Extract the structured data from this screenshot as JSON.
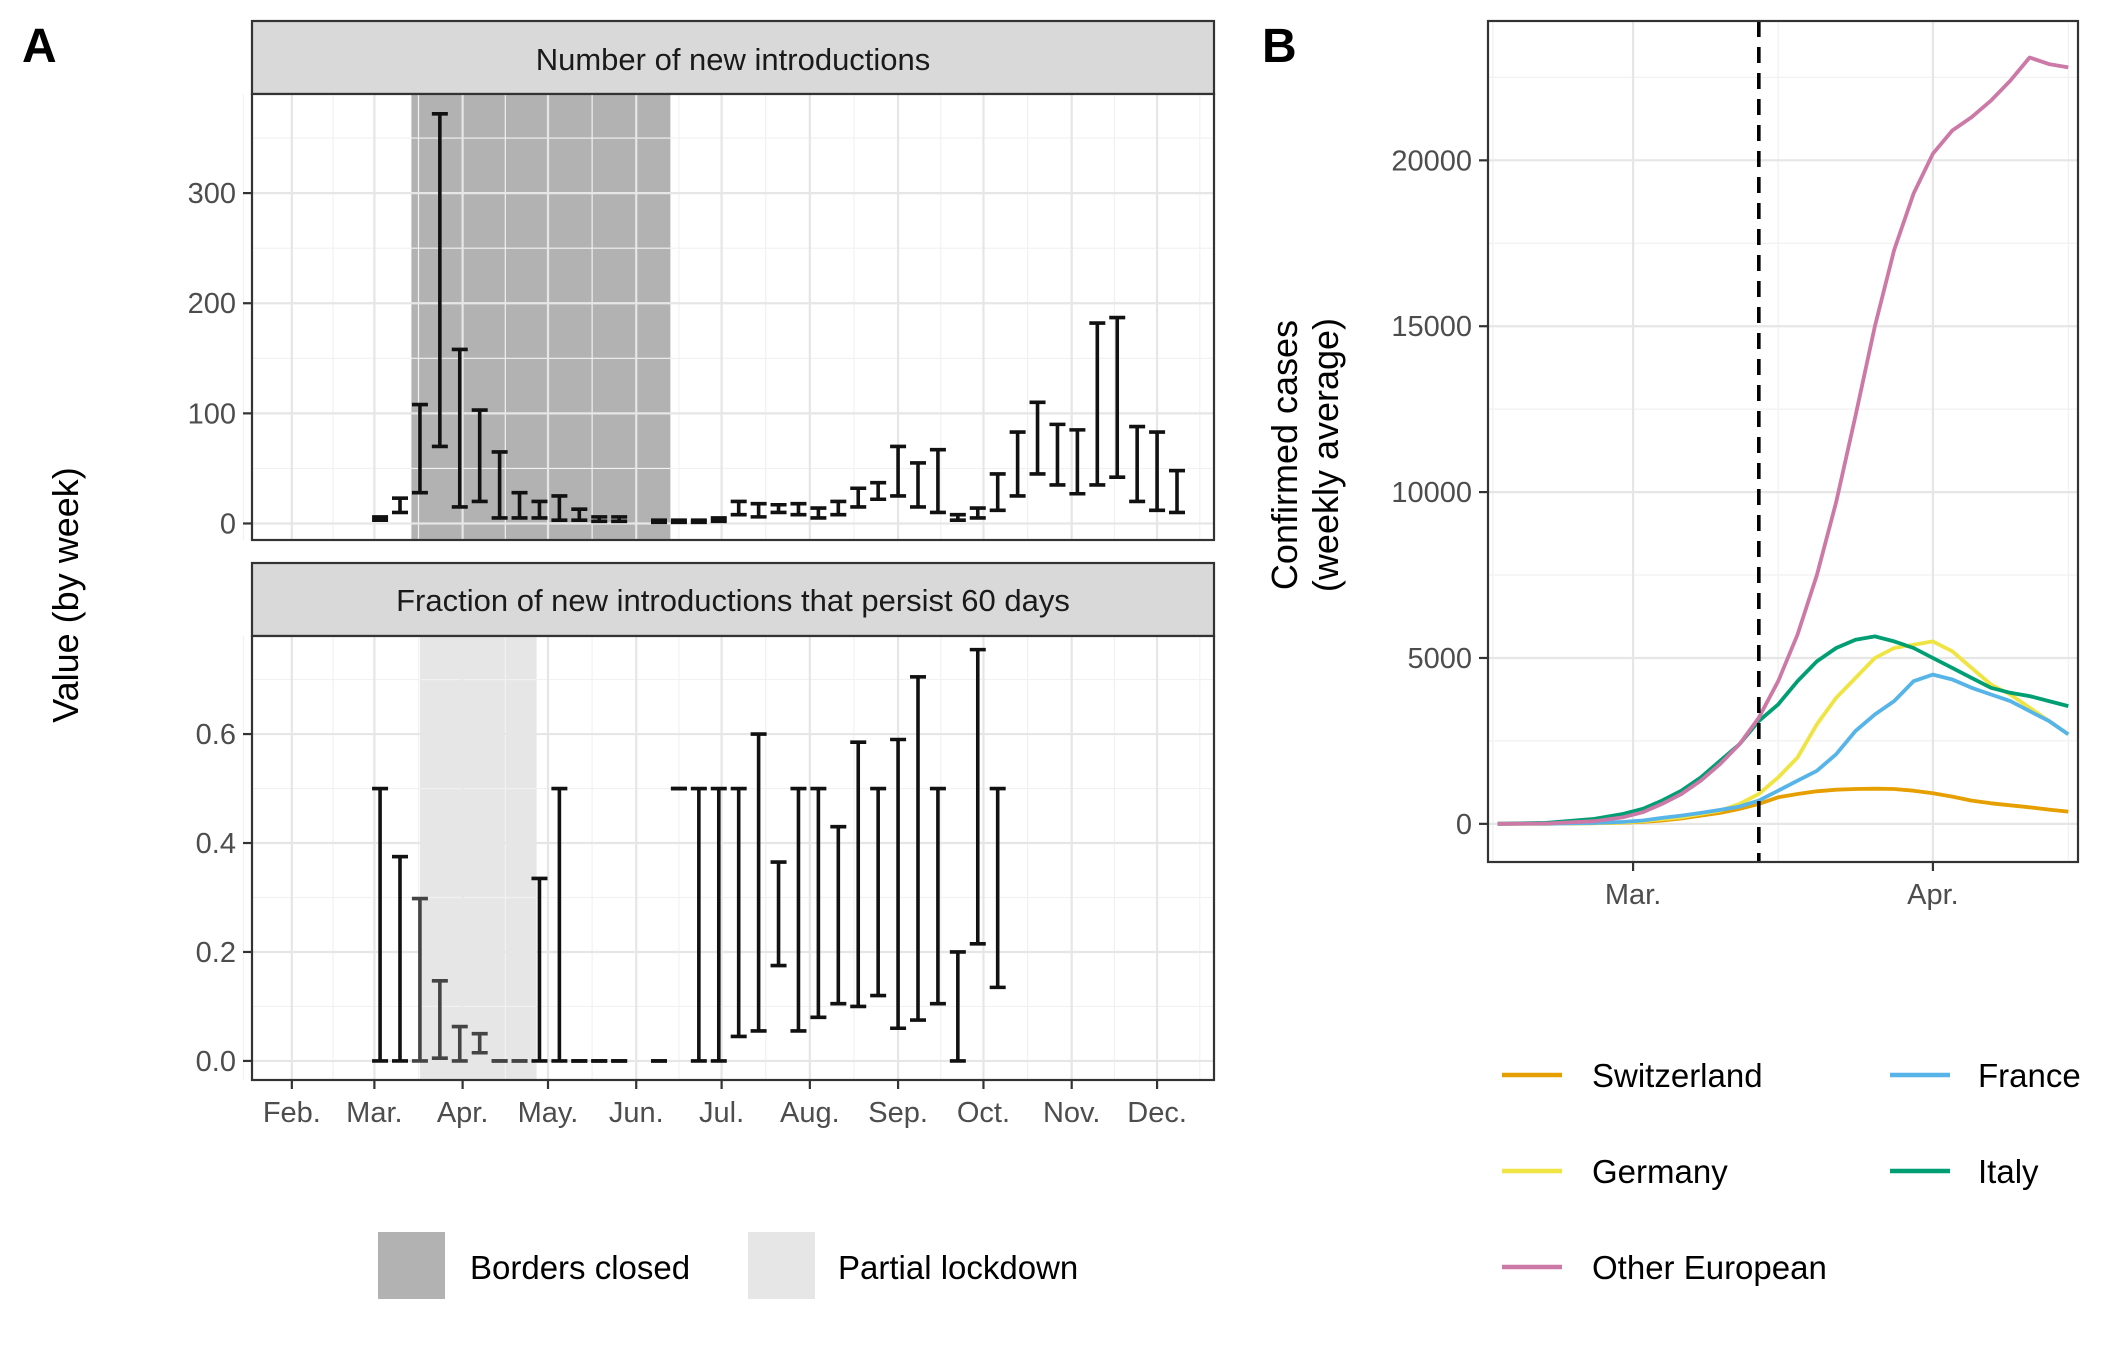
{
  "panel_labels": {
    "a": "A",
    "b": "B"
  },
  "panel_a": {
    "ylabel": "Value (by week)",
    "top": {
      "title": "Number of new introductions",
      "yticks": [
        0,
        100,
        200,
        300
      ],
      "ylim": [
        -15,
        390
      ]
    },
    "bottom": {
      "title": "Fraction of new introductions that persist 60 days",
      "yticks": [
        "0.0",
        "0.2",
        "0.4",
        "0.6"
      ],
      "ylim": [
        -0.035,
        0.78
      ]
    },
    "xtick_labels": [
      "Feb.",
      "Mar.",
      "Apr.",
      "May.",
      "Jun.",
      "Jul.",
      "Aug.",
      "Sep.",
      "Oct.",
      "Nov.",
      "Dec."
    ],
    "legend": [
      {
        "label": "Borders closed",
        "color": "#b2b2b2"
      },
      {
        "label": "Partial lockdown",
        "color": "#e6e6e6"
      }
    ]
  },
  "panel_b": {
    "ylabel_line1": "Confirmed cases",
    "ylabel_line2": "(weekly average)",
    "xtick_labels": [
      "Mar.",
      "Apr."
    ],
    "yticks": [
      "0",
      "5000",
      "10000",
      "15000",
      "20000"
    ],
    "legend": [
      {
        "label": "Switzerland",
        "color": "#E69F00"
      },
      {
        "label": "France",
        "color": "#56B4E9"
      },
      {
        "label": "Germany",
        "color": "#F0E442"
      },
      {
        "label": "Italy",
        "color": "#009E73"
      },
      {
        "label": "Other European",
        "color": "#CC79A7"
      }
    ]
  },
  "chart_data": [
    {
      "type": "errorbar",
      "title": "Number of new introductions",
      "x_unit": "day of year 2020 (week start)",
      "shaded_regions": [
        {
          "label": "Borders closed",
          "x": [
            74,
            165
          ],
          "color": "#b2b2b2"
        }
      ],
      "x": [
        63,
        70,
        77,
        84,
        91,
        98,
        105,
        112,
        119,
        126,
        133,
        140,
        147,
        154,
        161,
        168,
        175,
        182,
        189,
        196,
        203,
        210,
        217,
        224,
        231,
        238,
        245,
        252,
        259,
        266,
        273,
        280,
        287,
        294,
        301,
        308,
        315,
        322,
        329,
        336,
        343
      ],
      "lower": [
        3,
        10,
        28,
        70,
        15,
        20,
        5,
        5,
        5,
        3,
        3,
        2,
        2,
        null,
        1,
        1,
        1,
        2,
        8,
        6,
        10,
        8,
        5,
        8,
        15,
        22,
        25,
        15,
        10,
        3,
        5,
        12,
        25,
        45,
        35,
        27,
        35,
        42,
        20,
        12,
        10
      ],
      "upper": [
        6,
        23,
        108,
        372,
        158,
        103,
        65,
        28,
        20,
        25,
        13,
        6,
        6,
        null,
        3,
        3,
        3,
        5,
        20,
        18,
        17,
        18,
        14,
        20,
        32,
        37,
        70,
        55,
        67,
        8,
        14,
        45,
        83,
        110,
        90,
        85,
        182,
        187,
        88,
        83,
        48
      ]
    },
    {
      "type": "errorbar",
      "title": "Fraction of new introductions that persist 60 days",
      "x_unit": "day of year 2020 (week start)",
      "shaded_regions": [
        {
          "label": "Partial lockdown",
          "x": [
            77,
            118
          ],
          "color": "#e6e6e6"
        }
      ],
      "x": [
        63,
        70,
        77,
        84,
        91,
        98,
        105,
        112,
        119,
        126,
        133,
        140,
        147,
        154,
        161,
        168,
        175,
        182,
        189,
        196,
        203,
        210,
        217,
        224,
        231,
        238,
        245,
        252,
        259,
        266,
        273,
        280,
        287,
        294,
        301,
        308,
        315,
        322,
        329,
        336,
        343
      ],
      "lower": [
        0.0,
        0.0,
        0.0,
        0.005,
        0.0,
        0.015,
        0.0,
        0.0,
        0.0,
        0.0,
        0.0,
        0.0,
        0.0,
        null,
        0.0,
        0.5,
        0.0,
        0.0,
        0.045,
        0.055,
        0.175,
        0.055,
        0.08,
        0.105,
        0.1,
        0.12,
        0.06,
        0.075,
        0.105,
        0.0,
        0.215,
        0.135,
        null,
        null,
        null,
        null,
        null,
        null,
        null,
        null,
        null
      ],
      "upper": [
        0.5,
        0.375,
        0.298,
        0.147,
        0.063,
        0.05,
        0.0,
        0.0,
        0.335,
        0.5,
        0.0,
        0.0,
        0.0,
        null,
        0.0,
        0.5,
        0.5,
        0.5,
        0.5,
        0.6,
        0.365,
        0.5,
        0.5,
        0.43,
        0.585,
        0.5,
        0.59,
        0.705,
        0.5,
        0.2,
        0.755,
        0.5,
        null,
        null,
        null,
        null,
        null,
        null,
        null,
        null,
        null
      ]
    },
    {
      "type": "line",
      "title": "",
      "xlabel": "",
      "ylabel": "Confirmed cases (weekly average)",
      "x_unit": "day of year 2020",
      "xlim": [
        46,
        107
      ],
      "ylim": [
        -1150,
        24200
      ],
      "vline_x": 74,
      "x": [
        47,
        52,
        57,
        60,
        62,
        64,
        66,
        68,
        70,
        72,
        74,
        76,
        78,
        80,
        82,
        84,
        86,
        88,
        90,
        92,
        94,
        96,
        98,
        100,
        102,
        104,
        106
      ],
      "series": [
        {
          "name": "Switzerland",
          "color": "#E69F00",
          "values": [
            0,
            5,
            20,
            35,
            60,
            100,
            160,
            250,
            330,
            450,
            600,
            800,
            900,
            980,
            1030,
            1050,
            1060,
            1050,
            1000,
            920,
            820,
            700,
            620,
            560,
            500,
            430,
            370
          ]
        },
        {
          "name": "France",
          "color": "#56B4E9",
          "values": [
            0,
            5,
            25,
            60,
            100,
            180,
            250,
            330,
            420,
            520,
            700,
            1000,
            1300,
            1600,
            2100,
            2800,
            3300,
            3700,
            4300,
            4500,
            4350,
            4100,
            3900,
            3700,
            3400,
            3100,
            2700
          ]
        },
        {
          "name": "Germany",
          "color": "#F0E442",
          "values": [
            0,
            5,
            20,
            40,
            80,
            140,
            200,
            300,
            400,
            600,
            900,
            1400,
            2000,
            3000,
            3800,
            4400,
            5000,
            5300,
            5400,
            5500,
            5200,
            4700,
            4200,
            3900,
            3500,
            3100,
            2700
          ]
        },
        {
          "name": "Italy",
          "color": "#009E73",
          "values": [
            0,
            30,
            150,
            300,
            450,
            700,
            1000,
            1400,
            1900,
            2400,
            3100,
            3600,
            4300,
            4900,
            5300,
            5550,
            5650,
            5500,
            5300,
            5000,
            4700,
            4400,
            4100,
            3950,
            3850,
            3700,
            3550
          ]
        },
        {
          "name": "Other European",
          "color": "#CC79A7",
          "values": [
            0,
            10,
            80,
            200,
            350,
            600,
            900,
            1300,
            1800,
            2400,
            3200,
            4300,
            5700,
            7500,
            9700,
            12300,
            15000,
            17300,
            19000,
            20200,
            20900,
            21300,
            21800,
            22400,
            23100,
            22900,
            22800
          ]
        }
      ]
    }
  ]
}
